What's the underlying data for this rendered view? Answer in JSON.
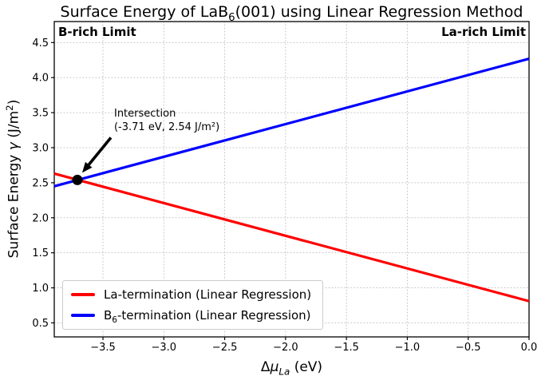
{
  "title": {
    "prefix": "Surface Energy of LaB",
    "sub": "6",
    "suffix": "(001) using Linear Regression Method"
  },
  "corner_labels": {
    "left": "B-rich Limit",
    "right": "La-rich Limit"
  },
  "xlabel": {
    "delta": "Δ",
    "mu": "μ",
    "sub": "La",
    "unit": " (eV)"
  },
  "ylabel": {
    "pre": "Surface Energy ",
    "gamma": "γ",
    "unit_pre": " (J/m",
    "sup": "2",
    "unit_post": ")"
  },
  "annotation": {
    "line1": "Intersection",
    "line2": "(-3.71 eV, 2.54 J/m²)"
  },
  "legend": {
    "entries": [
      {
        "pre": "La",
        "sub": "",
        "post": "-termination (Linear Regression)"
      },
      {
        "pre": "B",
        "sub": "6",
        "post": "-termination (Linear Regression)"
      }
    ]
  },
  "chart_data": {
    "type": "line",
    "title": "Surface Energy of LaB6(001) using Linear Regression Method",
    "xlabel": "ΔμLa (eV)",
    "ylabel": "Surface Energy γ (J/m²)",
    "xlim": [
      -3.9,
      0.0
    ],
    "ylim": [
      0.3,
      4.8
    ],
    "xticks": [
      -3.5,
      -3.0,
      -2.5,
      -2.0,
      -1.5,
      -1.0,
      -0.5,
      0.0
    ],
    "yticks": [
      0.5,
      1.0,
      1.5,
      2.0,
      2.5,
      3.0,
      3.5,
      4.0,
      4.5
    ],
    "grid": true,
    "grid_style": "dotted",
    "legend_position": "lower left",
    "colors": {
      "la_termination": "#ff0000",
      "b6_termination": "#0000ff"
    },
    "series": [
      {
        "name": "La-termination (Linear Regression)",
        "color": "#ff0000",
        "x": [
          -3.9,
          0.0
        ],
        "y": [
          2.63,
          0.81
        ],
        "slope": -0.466
      },
      {
        "name": "B6-termination (Linear Regression)",
        "color": "#0000ff",
        "x": [
          -3.9,
          0.0
        ],
        "y": [
          2.45,
          4.27
        ],
        "slope": 0.466
      }
    ],
    "intersection": {
      "x": -3.71,
      "y": 2.54
    }
  }
}
